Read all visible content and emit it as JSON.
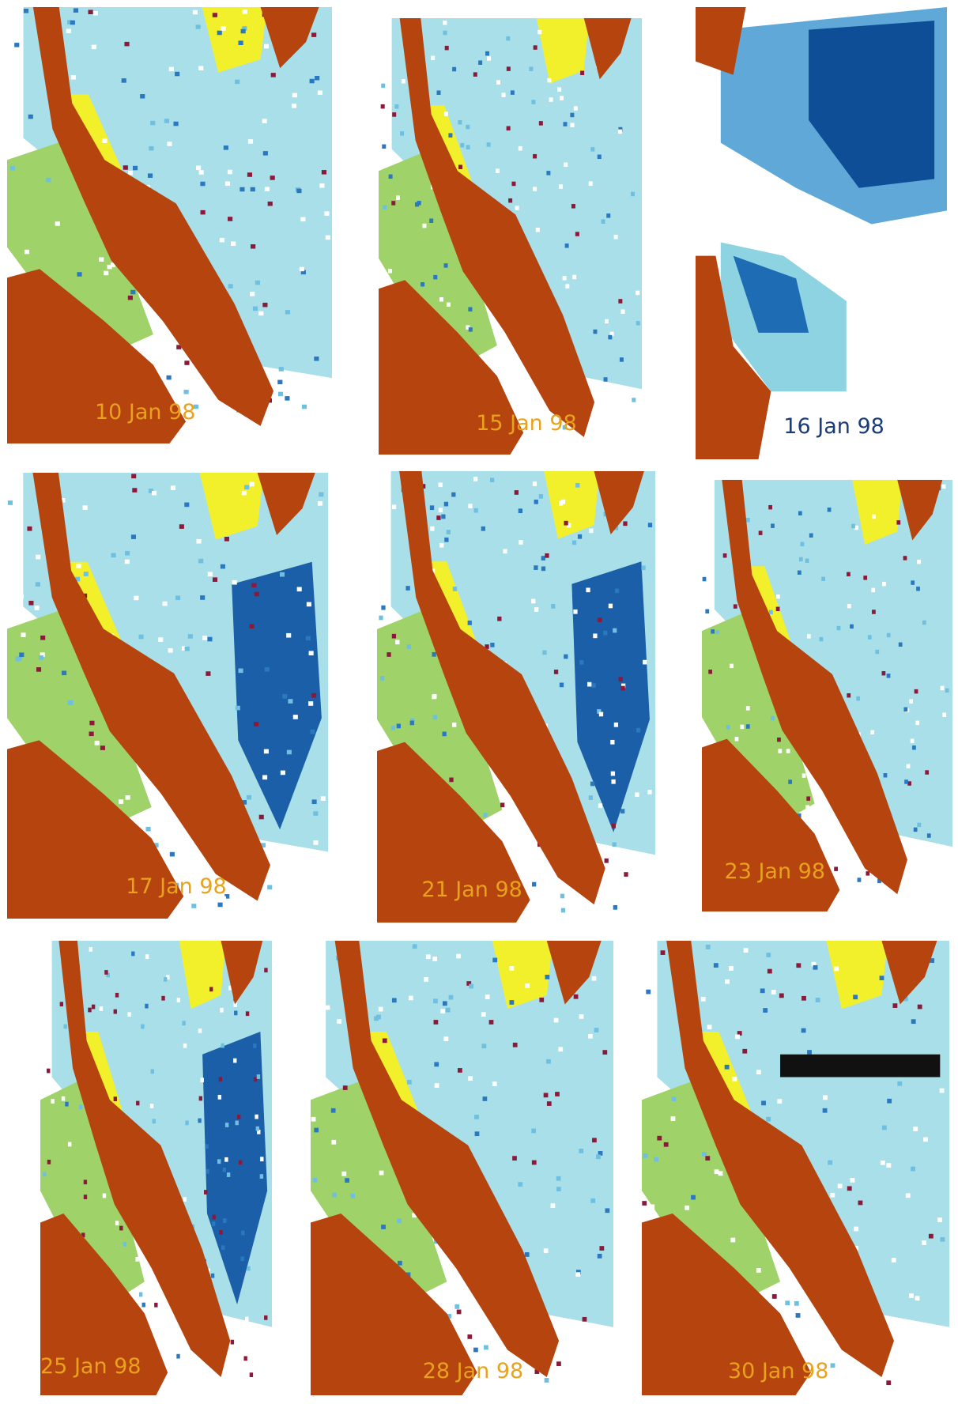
{
  "panels": [
    {
      "label": "10 Jan 98"
    },
    {
      "label": "15 Jan 98"
    },
    {
      "label": "16 Jan 98"
    },
    {
      "label": "17 Jan 98"
    },
    {
      "label": "21 Jan 98"
    },
    {
      "label": "23 Jan 98"
    },
    {
      "label": "25 Jan 98"
    },
    {
      "label": "28 Jan 98"
    },
    {
      "label": "30 Jan 98"
    }
  ]
}
